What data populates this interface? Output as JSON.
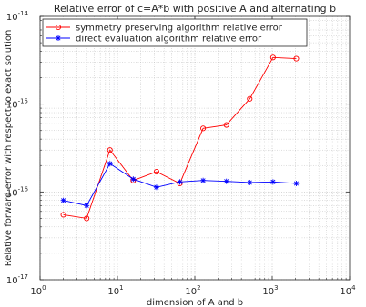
{
  "chart_data": {
    "type": "line",
    "title": "Relative error of c=A*b with positive A and alternating b",
    "xlabel": "dimension of A and b",
    "ylabel": "Relative forward error with respect to exact solution",
    "xscale": "log",
    "yscale": "log",
    "xlim": [
      1,
      10000
    ],
    "ylim": [
      1e-17,
      1e-14
    ],
    "grid": true,
    "legend_position": "top-left",
    "x_ticks": [
      {
        "value": 1,
        "base": "10",
        "exp": "0"
      },
      {
        "value": 10,
        "base": "10",
        "exp": "1"
      },
      {
        "value": 100,
        "base": "10",
        "exp": "2"
      },
      {
        "value": 1000,
        "base": "10",
        "exp": "3"
      },
      {
        "value": 10000,
        "base": "10",
        "exp": "4"
      }
    ],
    "y_ticks": [
      {
        "value": 1e-17,
        "base": "10",
        "exp": "-17"
      },
      {
        "value": 1e-16,
        "base": "10",
        "exp": "-16"
      },
      {
        "value": 1e-15,
        "base": "10",
        "exp": "-15"
      },
      {
        "value": 1e-14,
        "base": "10",
        "exp": "-14"
      }
    ],
    "x": [
      2,
      4,
      8,
      16,
      32,
      64,
      128,
      256,
      512,
      1024,
      2048
    ],
    "series": [
      {
        "name": "symmetry preserving algorithm relative error",
        "color": "#ff0000",
        "marker": "circle",
        "values": [
          5.5e-17,
          5e-17,
          3e-16,
          1.35e-16,
          1.7e-16,
          1.25e-16,
          5.3e-16,
          5.8e-16,
          1.15e-15,
          3.4e-15,
          3.3e-15
        ]
      },
      {
        "name": "direct evaluation algorithm relative error",
        "color": "#0000ff",
        "marker": "star",
        "values": [
          8e-17,
          7e-17,
          2.1e-16,
          1.4e-16,
          1.13e-16,
          1.3e-16,
          1.35e-16,
          1.32e-16,
          1.28e-16,
          1.3e-16,
          1.25e-16
        ]
      }
    ]
  }
}
